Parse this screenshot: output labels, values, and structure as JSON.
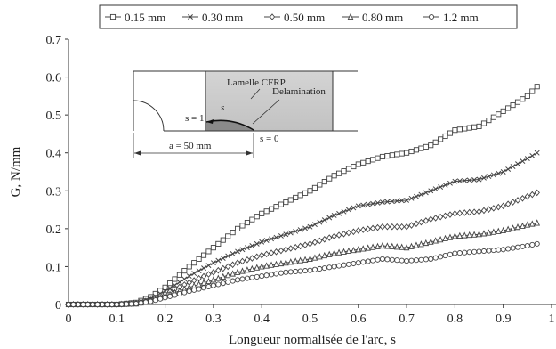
{
  "chart_data": {
    "type": "line",
    "xlabel": "Longueur normalisée de l'arc, s",
    "ylabel": "G, N/mm",
    "xlim": [
      0,
      1
    ],
    "ylim": [
      0,
      0.7
    ],
    "xticks": [
      "0",
      "0.1",
      "0.2",
      "0.3",
      "0.4",
      "0.5",
      "0.6",
      "0.7",
      "0.8",
      "0.9",
      "1"
    ],
    "yticks": [
      "0",
      "0.1",
      "0.2",
      "0.3",
      "0.4",
      "0.5",
      "0.6",
      "0.7"
    ],
    "grid": false,
    "legend_position": "top",
    "series": [
      {
        "name": "0.15 mm",
        "marker": "square",
        "color": "#444444",
        "x": [
          0,
          0.05,
          0.1,
          0.14,
          0.17,
          0.2,
          0.25,
          0.3,
          0.35,
          0.4,
          0.45,
          0.5,
          0.55,
          0.6,
          0.65,
          0.7,
          0.75,
          0.8,
          0.85,
          0.9,
          0.95,
          0.97
        ],
        "y": [
          0,
          0,
          0,
          0.005,
          0.02,
          0.045,
          0.1,
          0.15,
          0.2,
          0.24,
          0.27,
          0.3,
          0.34,
          0.37,
          0.39,
          0.4,
          0.42,
          0.46,
          0.47,
          0.51,
          0.55,
          0.575
        ]
      },
      {
        "name": "0.30 mm",
        "marker": "cross",
        "color": "#444444",
        "x": [
          0,
          0.05,
          0.1,
          0.14,
          0.17,
          0.2,
          0.25,
          0.3,
          0.35,
          0.4,
          0.45,
          0.5,
          0.55,
          0.6,
          0.65,
          0.7,
          0.75,
          0.8,
          0.85,
          0.9,
          0.95,
          0.97
        ],
        "y": [
          0,
          0,
          0,
          0.004,
          0.015,
          0.035,
          0.075,
          0.11,
          0.14,
          0.165,
          0.185,
          0.205,
          0.235,
          0.26,
          0.27,
          0.275,
          0.3,
          0.325,
          0.33,
          0.35,
          0.385,
          0.4
        ]
      },
      {
        "name": "0.50 mm",
        "marker": "diamond",
        "color": "#444444",
        "x": [
          0,
          0.05,
          0.1,
          0.14,
          0.17,
          0.2,
          0.25,
          0.3,
          0.35,
          0.4,
          0.45,
          0.5,
          0.55,
          0.6,
          0.65,
          0.7,
          0.75,
          0.8,
          0.85,
          0.9,
          0.95,
          0.97
        ],
        "y": [
          0,
          0,
          0,
          0.003,
          0.012,
          0.028,
          0.058,
          0.085,
          0.11,
          0.13,
          0.145,
          0.16,
          0.18,
          0.195,
          0.205,
          0.205,
          0.225,
          0.24,
          0.245,
          0.26,
          0.285,
          0.295
        ]
      },
      {
        "name": "0.80 mm",
        "marker": "triangle",
        "color": "#444444",
        "x": [
          0,
          0.05,
          0.1,
          0.14,
          0.17,
          0.2,
          0.25,
          0.3,
          0.35,
          0.4,
          0.45,
          0.5,
          0.55,
          0.6,
          0.65,
          0.7,
          0.75,
          0.8,
          0.85,
          0.9,
          0.95,
          0.97
        ],
        "y": [
          0,
          0,
          0,
          0.002,
          0.01,
          0.022,
          0.045,
          0.065,
          0.085,
          0.1,
          0.11,
          0.12,
          0.135,
          0.145,
          0.155,
          0.15,
          0.165,
          0.18,
          0.185,
          0.195,
          0.21,
          0.215
        ]
      },
      {
        "name": "1.2 mm",
        "marker": "circle",
        "color": "#444444",
        "x": [
          0,
          0.05,
          0.1,
          0.14,
          0.17,
          0.2,
          0.25,
          0.3,
          0.35,
          0.4,
          0.45,
          0.5,
          0.55,
          0.6,
          0.65,
          0.7,
          0.75,
          0.8,
          0.85,
          0.9,
          0.95,
          0.97
        ],
        "y": [
          0,
          0,
          0,
          0.002,
          0.008,
          0.018,
          0.035,
          0.05,
          0.065,
          0.075,
          0.085,
          0.09,
          0.1,
          0.11,
          0.12,
          0.115,
          0.12,
          0.135,
          0.14,
          0.145,
          0.155,
          0.16
        ]
      }
    ],
    "inset": {
      "label_material": "Lamelle CFRP",
      "label_delamination": "Delamination",
      "label_s": "s",
      "label_s1": "s = 1",
      "label_s0": "s = 0",
      "label_a": "a = 50 mm"
    }
  }
}
